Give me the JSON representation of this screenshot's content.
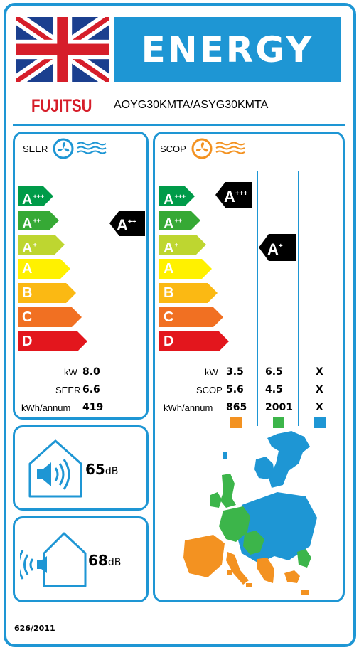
{
  "header": {
    "flag_name": "uk-flag",
    "energy_title": "ENERGY",
    "brand": "FUJITSU",
    "model": "AOYG30KMTA/ASYG30KMTA",
    "accent_color": "#1e96d4",
    "brand_color": "#d61e2a"
  },
  "seer": {
    "title": "SEER",
    "icon": "fan-cooling-icon",
    "rating": "A",
    "rating_sup": "++",
    "scale": [
      {
        "label": "A",
        "sup": "+++",
        "color": "#009b49"
      },
      {
        "label": "A",
        "sup": "++",
        "color": "#36a935"
      },
      {
        "label": "A",
        "sup": "+",
        "color": "#bed630"
      },
      {
        "label": "A",
        "sup": "",
        "color": "#fff100"
      },
      {
        "label": "B",
        "sup": "",
        "color": "#fbb913"
      },
      {
        "label": "C",
        "sup": "",
        "color": "#f17022"
      },
      {
        "label": "D",
        "sup": "",
        "color": "#e3161d"
      }
    ],
    "rows": [
      {
        "label": "kW",
        "value": "8.0"
      },
      {
        "label": "SEER",
        "value": "6.6"
      },
      {
        "label": "kWh/annum",
        "value": "419"
      }
    ]
  },
  "scop": {
    "title": "SCOP",
    "icon": "fan-heating-icon",
    "ratings": [
      {
        "label": "A",
        "sup": "+++"
      },
      {
        "label": "A",
        "sup": "+"
      }
    ],
    "rows": [
      {
        "label": "kW",
        "values": [
          "3.5",
          "6.5",
          "X"
        ]
      },
      {
        "label": "SCOP",
        "values": [
          "5.6",
          "4.5",
          "X"
        ]
      },
      {
        "label": "kWh/annum",
        "values": [
          "865",
          "2001",
          "X"
        ]
      }
    ],
    "zone_colors": [
      "#f39221",
      "#3cb54a",
      "#1e96d4"
    ]
  },
  "noise_indoor": {
    "value": "65",
    "unit": "dB",
    "icon": "indoor-speaker-icon"
  },
  "noise_outdoor": {
    "value": "68",
    "unit": "dB",
    "icon": "outdoor-speaker-icon"
  },
  "footer": {
    "regulation": "626/2011"
  }
}
